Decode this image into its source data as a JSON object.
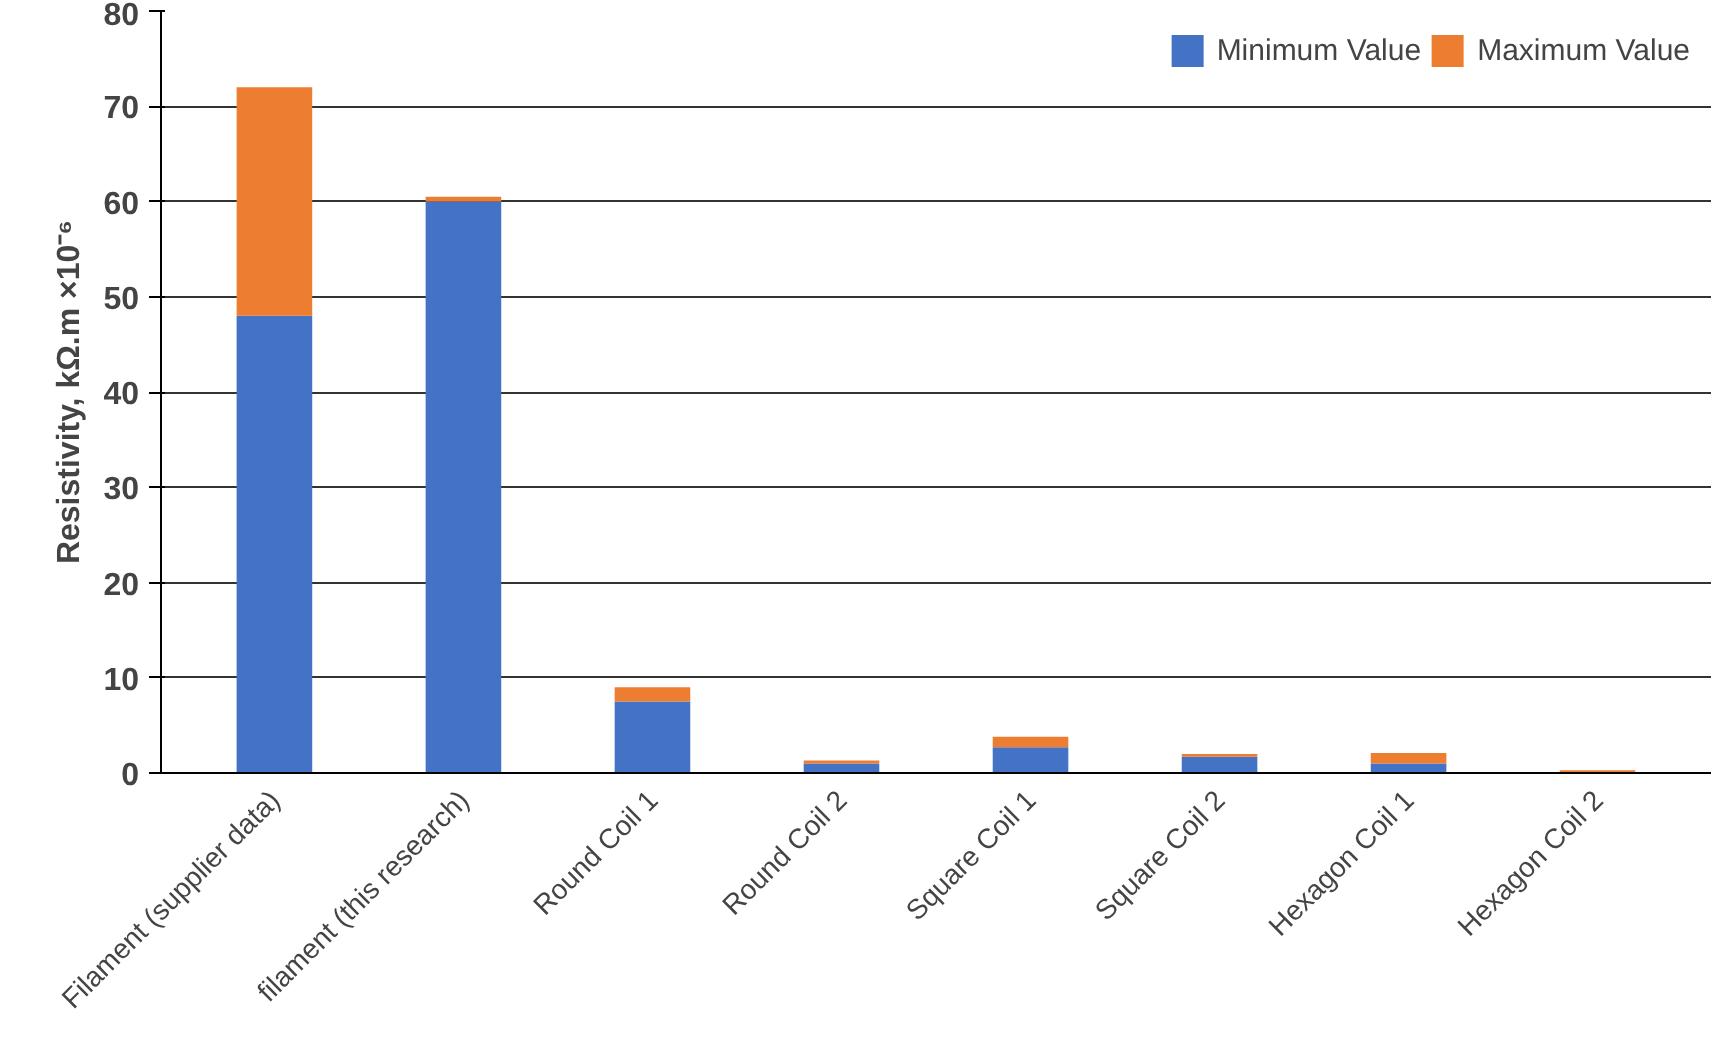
{
  "chart_data": {
    "type": "bar",
    "stacked": true,
    "ylabel": "Resistivity, kΩ.m ×10⁻⁶",
    "categories": [
      "Filament (supplier data)",
      "filament (this research)",
      "Round Coil 1",
      "Round Coil 2",
      "Square Coil 1",
      "Square Coil 2",
      "Hexagon Coil 1",
      "Hexagon Coil 2"
    ],
    "series": [
      {
        "name": "Minimum Value",
        "color": "#4472c4",
        "values": [
          48,
          60,
          7.5,
          1,
          2.7,
          1.7,
          1,
          0
        ]
      },
      {
        "name": "Maximum Value",
        "color": "#ed7d31",
        "values": [
          24,
          0.5,
          1.5,
          0.3,
          1.1,
          0.3,
          1.1,
          0.3
        ]
      }
    ],
    "ylim": [
      0,
      80
    ],
    "yticks": [
      0,
      10,
      20,
      30,
      40,
      50,
      60,
      70,
      80
    ],
    "grid": "y",
    "legend": "top right"
  }
}
